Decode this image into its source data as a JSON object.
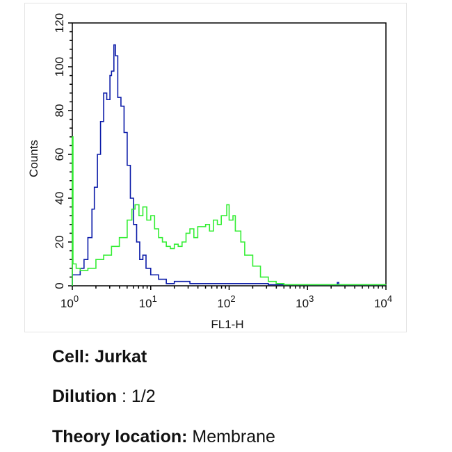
{
  "chart_data": {
    "type": "line",
    "style": "histogram-step",
    "xlabel": "FL1-H",
    "ylabel": "Counts",
    "xscale": "log",
    "xlim": [
      1,
      10000
    ],
    "ylim": [
      0,
      120
    ],
    "x_ticks": [
      {
        "base": "10",
        "exp": "0"
      },
      {
        "base": "10",
        "exp": "1"
      },
      {
        "base": "10",
        "exp": "2"
      },
      {
        "base": "10",
        "exp": "3"
      },
      {
        "base": "10",
        "exp": "4"
      }
    ],
    "y_ticks": [
      "0",
      "20",
      "40",
      "60",
      "80",
      "100",
      "120"
    ],
    "grid": false,
    "series": [
      {
        "color": "#0a1aa8",
        "x": [
          1.0,
          1.05,
          1.26,
          1.41,
          1.58,
          1.78,
          1.91,
          2.09,
          2.29,
          2.51,
          2.75,
          3.02,
          3.16,
          3.39,
          3.55,
          3.8,
          4.17,
          4.57,
          5.01,
          5.5,
          6.03,
          6.61,
          7.24,
          7.94,
          8.71,
          10.0,
          12.6,
          15.8,
          20,
          31.6,
          50,
          100,
          316,
          1000,
          2400,
          2500,
          10000
        ],
        "y": [
          5,
          5,
          8,
          12,
          22,
          35,
          45,
          60,
          75,
          88,
          85,
          96,
          98,
          110,
          105,
          86,
          82,
          70,
          55,
          40,
          28,
          20,
          12,
          14,
          8,
          5,
          3,
          1,
          2,
          1,
          1,
          1,
          0.5,
          0.5,
          1.5,
          0.5,
          0.5
        ]
      },
      {
        "color": "#33ee33",
        "x": [
          1.0,
          1.02,
          1.12,
          1.26,
          1.58,
          2.0,
          2.51,
          3.16,
          3.98,
          5.01,
          5.75,
          6.31,
          7.08,
          7.94,
          8.91,
          10.0,
          11.2,
          12.6,
          14.1,
          15.8,
          17.8,
          20.0,
          22.4,
          25.1,
          28.2,
          31.6,
          35.5,
          39.8,
          50.1,
          56.2,
          63.1,
          70.8,
          79.4,
          93.3,
          100,
          112,
          120,
          141,
          158,
          200,
          251,
          316,
          398,
          501,
          1000,
          10000
        ],
        "y": [
          68,
          10,
          8,
          7,
          8,
          12,
          14,
          18,
          22,
          30,
          35,
          37,
          32,
          36,
          30,
          32,
          26,
          22,
          20,
          18,
          17,
          19,
          18,
          20,
          24,
          26,
          22,
          27,
          28,
          25,
          30,
          28,
          32,
          37,
          30,
          32,
          25,
          20,
          14,
          9,
          4,
          2,
          1,
          0.5,
          0.5,
          0.5
        ]
      }
    ]
  },
  "captions": {
    "cell_label": "Cell:",
    "cell_value": "Jurkat",
    "dilution_label": "Dilution",
    "dilution_value": ": 1/2",
    "location_label": "Theory location:",
    "location_value": "Membrane"
  }
}
